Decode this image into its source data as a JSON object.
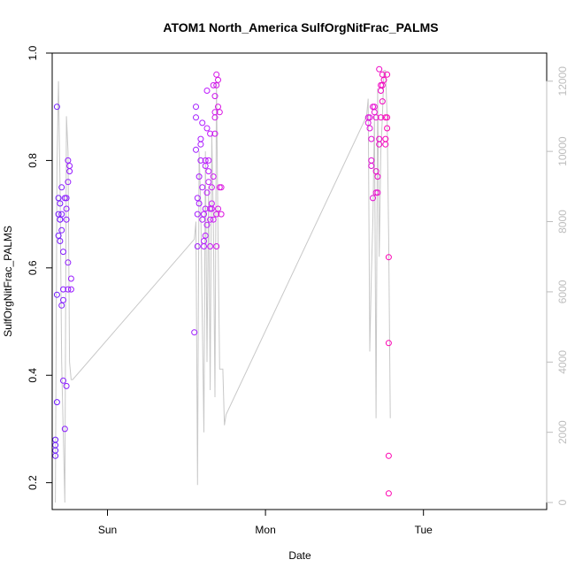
{
  "chart_data": {
    "type": "scatter",
    "title": "ATOM1 North_America SulfOrgNitFrac_PALMS",
    "xlabel": "Date",
    "ylabel": "SulfOrgNitFrac_PALMS",
    "xlim": [
      -0.35,
      2.78
    ],
    "ylim": [
      0.15,
      1.0
    ],
    "y2lim": [
      -200,
      12800
    ],
    "x_ticks": [
      {
        "value": 0,
        "label": "Sun"
      },
      {
        "value": 1,
        "label": "Mon"
      },
      {
        "value": 2,
        "label": "Tue"
      }
    ],
    "y_ticks": [
      0.2,
      0.4,
      0.6,
      0.8,
      1.0
    ],
    "y2_ticks": [
      0,
      2000,
      4000,
      6000,
      8000,
      10000,
      12000
    ],
    "colors": {
      "start": "#6a1bff",
      "mid": "#c21bff",
      "end": "#ff00b0",
      "secondary_line": "#c8c8c8",
      "axis_secondary": "#bdbdbd"
    },
    "points": [
      {
        "x": -0.33,
        "y": 0.28
      },
      {
        "x": -0.33,
        "y": 0.26
      },
      {
        "x": -0.33,
        "y": 0.25
      },
      {
        "x": -0.33,
        "y": 0.27
      },
      {
        "x": -0.32,
        "y": 0.35
      },
      {
        "x": -0.32,
        "y": 0.55
      },
      {
        "x": -0.32,
        "y": 0.9
      },
      {
        "x": -0.31,
        "y": 0.73
      },
      {
        "x": -0.31,
        "y": 0.66
      },
      {
        "x": -0.31,
        "y": 0.7
      },
      {
        "x": -0.3,
        "y": 0.69
      },
      {
        "x": -0.3,
        "y": 0.69
      },
      {
        "x": -0.3,
        "y": 0.65
      },
      {
        "x": -0.3,
        "y": 0.72
      },
      {
        "x": -0.29,
        "y": 0.67
      },
      {
        "x": -0.29,
        "y": 0.75
      },
      {
        "x": -0.29,
        "y": 0.7
      },
      {
        "x": -0.29,
        "y": 0.53
      },
      {
        "x": -0.28,
        "y": 0.54
      },
      {
        "x": -0.28,
        "y": 0.39
      },
      {
        "x": -0.28,
        "y": 0.63
      },
      {
        "x": -0.28,
        "y": 0.56
      },
      {
        "x": -0.27,
        "y": 0.3
      },
      {
        "x": -0.27,
        "y": 0.73
      },
      {
        "x": -0.26,
        "y": 0.69
      },
      {
        "x": -0.26,
        "y": 0.38
      },
      {
        "x": -0.26,
        "y": 0.73
      },
      {
        "x": -0.26,
        "y": 0.71
      },
      {
        "x": -0.25,
        "y": 0.61
      },
      {
        "x": -0.25,
        "y": 0.56
      },
      {
        "x": -0.25,
        "y": 0.8
      },
      {
        "x": -0.25,
        "y": 0.76
      },
      {
        "x": -0.24,
        "y": 0.78
      },
      {
        "x": -0.24,
        "y": 0.79
      },
      {
        "x": -0.23,
        "y": 0.58
      },
      {
        "x": -0.23,
        "y": 0.56
      },
      {
        "x": 0.55,
        "y": 0.48
      },
      {
        "x": 0.56,
        "y": 0.82
      },
      {
        "x": 0.56,
        "y": 0.9
      },
      {
        "x": 0.56,
        "y": 0.88
      },
      {
        "x": 0.57,
        "y": 0.64
      },
      {
        "x": 0.57,
        "y": 0.7
      },
      {
        "x": 0.57,
        "y": 0.73
      },
      {
        "x": 0.58,
        "y": 0.72
      },
      {
        "x": 0.58,
        "y": 0.77
      },
      {
        "x": 0.59,
        "y": 0.8
      },
      {
        "x": 0.59,
        "y": 0.83
      },
      {
        "x": 0.59,
        "y": 0.84
      },
      {
        "x": 0.6,
        "y": 0.87
      },
      {
        "x": 0.6,
        "y": 0.75
      },
      {
        "x": 0.6,
        "y": 0.69
      },
      {
        "x": 0.61,
        "y": 0.64
      },
      {
        "x": 0.61,
        "y": 0.65
      },
      {
        "x": 0.61,
        "y": 0.7
      },
      {
        "x": 0.62,
        "y": 0.66
      },
      {
        "x": 0.62,
        "y": 0.79
      },
      {
        "x": 0.62,
        "y": 0.71
      },
      {
        "x": 0.62,
        "y": 0.8
      },
      {
        "x": 0.63,
        "y": 0.86
      },
      {
        "x": 0.63,
        "y": 0.68
      },
      {
        "x": 0.63,
        "y": 0.93
      },
      {
        "x": 0.63,
        "y": 0.74
      },
      {
        "x": 0.64,
        "y": 0.8
      },
      {
        "x": 0.64,
        "y": 0.78
      },
      {
        "x": 0.64,
        "y": 0.76
      },
      {
        "x": 0.65,
        "y": 0.85
      },
      {
        "x": 0.65,
        "y": 0.69
      },
      {
        "x": 0.65,
        "y": 0.71
      },
      {
        "x": 0.65,
        "y": 0.64
      },
      {
        "x": 0.66,
        "y": 0.71
      },
      {
        "x": 0.66,
        "y": 0.72
      },
      {
        "x": 0.66,
        "y": 0.75
      },
      {
        "x": 0.67,
        "y": 0.69
      },
      {
        "x": 0.67,
        "y": 0.77
      },
      {
        "x": 0.67,
        "y": 0.94
      },
      {
        "x": 0.68,
        "y": 0.92
      },
      {
        "x": 0.68,
        "y": 0.89
      },
      {
        "x": 0.68,
        "y": 0.85
      },
      {
        "x": 0.68,
        "y": 0.88
      },
      {
        "x": 0.69,
        "y": 0.7
      },
      {
        "x": 0.69,
        "y": 0.64
      },
      {
        "x": 0.69,
        "y": 0.94
      },
      {
        "x": 0.69,
        "y": 0.96
      },
      {
        "x": 0.7,
        "y": 0.95
      },
      {
        "x": 0.7,
        "y": 0.9
      },
      {
        "x": 0.7,
        "y": 0.71
      },
      {
        "x": 0.71,
        "y": 0.89
      },
      {
        "x": 0.71,
        "y": 0.75
      },
      {
        "x": 0.72,
        "y": 0.75
      },
      {
        "x": 0.72,
        "y": 0.7
      },
      {
        "x": 1.65,
        "y": 0.88
      },
      {
        "x": 1.65,
        "y": 0.87
      },
      {
        "x": 1.66,
        "y": 0.86
      },
      {
        "x": 1.66,
        "y": 0.88
      },
      {
        "x": 1.67,
        "y": 0.79
      },
      {
        "x": 1.67,
        "y": 0.84
      },
      {
        "x": 1.67,
        "y": 0.8
      },
      {
        "x": 1.68,
        "y": 0.73
      },
      {
        "x": 1.68,
        "y": 0.9
      },
      {
        "x": 1.69,
        "y": 0.9
      },
      {
        "x": 1.69,
        "y": 0.89
      },
      {
        "x": 1.7,
        "y": 0.88
      },
      {
        "x": 1.7,
        "y": 0.74
      },
      {
        "x": 1.7,
        "y": 0.78
      },
      {
        "x": 1.71,
        "y": 0.74
      },
      {
        "x": 1.71,
        "y": 0.77
      },
      {
        "x": 1.72,
        "y": 0.84
      },
      {
        "x": 1.72,
        "y": 0.83
      },
      {
        "x": 1.72,
        "y": 0.97
      },
      {
        "x": 1.73,
        "y": 0.93
      },
      {
        "x": 1.73,
        "y": 0.94
      },
      {
        "x": 1.73,
        "y": 0.88
      },
      {
        "x": 1.74,
        "y": 0.91
      },
      {
        "x": 1.74,
        "y": 0.94
      },
      {
        "x": 1.74,
        "y": 0.96
      },
      {
        "x": 1.75,
        "y": 0.95
      },
      {
        "x": 1.76,
        "y": 0.88
      },
      {
        "x": 1.76,
        "y": 0.83
      },
      {
        "x": 1.76,
        "y": 0.84
      },
      {
        "x": 1.77,
        "y": 0.96
      },
      {
        "x": 1.77,
        "y": 0.88
      },
      {
        "x": 1.77,
        "y": 0.86
      },
      {
        "x": 1.78,
        "y": 0.62
      },
      {
        "x": 1.78,
        "y": 0.46
      },
      {
        "x": 1.78,
        "y": 0.25
      },
      {
        "x": 1.78,
        "y": 0.18
      }
    ],
    "secondary_line": [
      [
        -0.33,
        0
      ],
      [
        -0.32,
        9500
      ],
      [
        -0.31,
        12000
      ],
      [
        -0.3,
        9000
      ],
      [
        -0.29,
        4000
      ],
      [
        -0.28,
        2000
      ],
      [
        -0.27,
        0
      ],
      [
        -0.26,
        11000
      ],
      [
        -0.25,
        10000
      ],
      [
        -0.24,
        4000
      ],
      [
        -0.23,
        3500
      ],
      [
        -0.22,
        3500
      ],
      [
        0.55,
        7500
      ],
      [
        0.56,
        8000
      ],
      [
        0.57,
        500
      ],
      [
        0.58,
        10000
      ],
      [
        0.59,
        8500
      ],
      [
        0.6,
        5200
      ],
      [
        0.61,
        2000
      ],
      [
        0.62,
        10000
      ],
      [
        0.63,
        4000
      ],
      [
        0.64,
        9000
      ],
      [
        0.65,
        3200
      ],
      [
        0.66,
        10500
      ],
      [
        0.67,
        8000
      ],
      [
        0.68,
        3000
      ],
      [
        0.69,
        12000
      ],
      [
        0.7,
        7500
      ],
      [
        0.71,
        3800
      ],
      [
        0.72,
        3800
      ],
      [
        0.73,
        3800
      ],
      [
        0.74,
        2200
      ],
      [
        0.75,
        2500
      ],
      [
        1.64,
        11000
      ],
      [
        1.65,
        11500
      ],
      [
        1.66,
        4300
      ],
      [
        1.67,
        6500
      ],
      [
        1.68,
        8000
      ],
      [
        1.69,
        11000
      ],
      [
        1.7,
        2400
      ],
      [
        1.71,
        11800
      ],
      [
        1.72,
        7000
      ],
      [
        1.73,
        10000
      ],
      [
        1.74,
        11000
      ],
      [
        1.75,
        12300
      ],
      [
        1.76,
        12300
      ],
      [
        1.77,
        11000
      ],
      [
        1.78,
        7500
      ],
      [
        1.79,
        2400
      ]
    ]
  }
}
